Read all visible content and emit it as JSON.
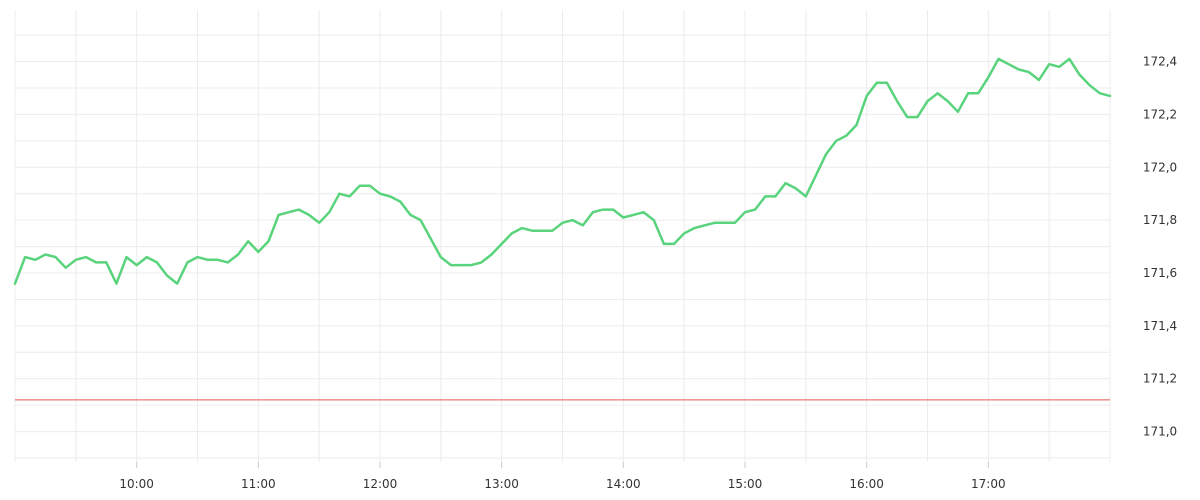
{
  "chart_data": {
    "type": "line",
    "title": "",
    "xlabel": "",
    "ylabel": "",
    "grid": true,
    "legend": "none",
    "x_tick_labels": [
      "10:00",
      "11:00",
      "12:00",
      "13:00",
      "14:00",
      "15:00",
      "16:00",
      "17:00"
    ],
    "y_tick_labels": [
      "171,0",
      "171,2",
      "171,4",
      "171,6",
      "171,8",
      "172,0",
      "172,2",
      "172,4"
    ],
    "x_ticks": [
      60,
      120,
      180,
      240,
      300,
      360,
      420,
      480
    ],
    "y_ticks": [
      171.0,
      171.2,
      171.4,
      171.6,
      171.8,
      172.0,
      172.2,
      172.4
    ],
    "xlim": [
      0,
      540
    ],
    "ylim": [
      170.885,
      172.595
    ],
    "series": [
      {
        "color": "#5ad37d",
        "x": [
          0,
          5,
          10,
          15,
          20,
          25,
          30,
          35,
          40,
          45,
          50,
          55,
          60,
          65,
          70,
          75,
          80,
          85,
          90,
          95,
          100,
          105,
          110,
          115,
          120,
          125,
          130,
          135,
          140,
          145,
          150,
          155,
          160,
          165,
          170,
          175,
          180,
          185,
          190,
          195,
          200,
          205,
          210,
          215,
          220,
          225,
          230,
          235,
          240,
          245,
          250,
          255,
          260,
          265,
          270,
          275,
          280,
          285,
          290,
          295,
          300,
          305,
          310,
          315,
          320,
          325,
          330,
          335,
          340,
          345,
          350,
          355,
          360,
          365,
          370,
          375,
          380,
          385,
          390,
          395,
          400,
          405,
          410,
          415,
          420,
          425,
          430,
          435,
          440,
          445,
          450,
          455,
          460,
          465,
          470,
          475,
          480,
          485,
          490,
          495,
          500,
          505,
          510,
          515,
          520,
          525,
          530,
          535,
          540
        ],
        "y": [
          171.56,
          171.66,
          171.65,
          171.67,
          171.66,
          171.62,
          171.65,
          171.66,
          171.64,
          171.64,
          171.56,
          171.66,
          171.63,
          171.66,
          171.64,
          171.59,
          171.56,
          171.64,
          171.66,
          171.65,
          171.65,
          171.64,
          171.67,
          171.72,
          171.68,
          171.72,
          171.82,
          171.83,
          171.84,
          171.82,
          171.79,
          171.83,
          171.9,
          171.89,
          171.93,
          171.93,
          171.9,
          171.89,
          171.87,
          171.82,
          171.8,
          171.73,
          171.66,
          171.63,
          171.63,
          171.63,
          171.64,
          171.67,
          171.71,
          171.75,
          171.77,
          171.76,
          171.76,
          171.76,
          171.79,
          171.8,
          171.78,
          171.83,
          171.84,
          171.84,
          171.81,
          171.82,
          171.83,
          171.8,
          171.71,
          171.71,
          171.75,
          171.77,
          171.78,
          171.79,
          171.79,
          171.79,
          171.83,
          171.84,
          171.89,
          171.89,
          171.94,
          171.92,
          171.89,
          171.97,
          172.05,
          172.1,
          172.12,
          172.16,
          172.27,
          172.32,
          172.32,
          172.25,
          172.19,
          172.19,
          172.25,
          172.28,
          172.25,
          172.21,
          172.28,
          172.28,
          172.34,
          172.41,
          172.39,
          172.37,
          172.36,
          172.33,
          172.39,
          172.38,
          172.41,
          172.35,
          172.31,
          172.28,
          172.27
        ]
      }
    ],
    "reference_line": {
      "y": 171.12,
      "color": "#e05a4f"
    }
  }
}
